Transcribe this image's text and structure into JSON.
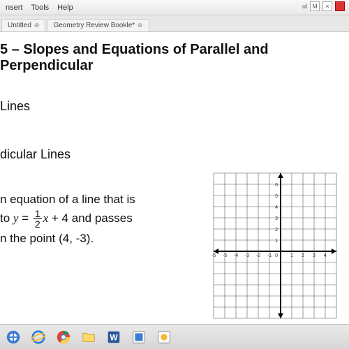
{
  "menu": {
    "items": [
      "nsert",
      "Tools",
      "Help"
    ]
  },
  "tabs": [
    {
      "label": "Untitled",
      "close": "⊛"
    },
    {
      "label": "Geometry Review Bookle*",
      "close": "⊛"
    }
  ],
  "topright": {
    "mini": "ul",
    "m": "M",
    "x": "×"
  },
  "doc": {
    "title": "5 – Slopes and Equations of Parallel and Perpendicular",
    "section1": "Lines",
    "section2": "dicular Lines",
    "body_l1": "n equation of a line that is",
    "body_l2a": "to ",
    "eq_y": "y",
    "eq_eq": " = ",
    "eq_num": "1",
    "eq_den": "2",
    "eq_x": "x",
    "eq_tail": " + 4",
    "body_l2b": "  and passes",
    "body_l3": "n the point (4, -3)."
  },
  "graph": {
    "xmin": -6,
    "xmax": 5,
    "ymin": -6,
    "ymax": 7,
    "cell": 16,
    "grid_color": "#555555",
    "axis_color": "#000000",
    "bg": "#ffffff",
    "xticks": [
      -6,
      -5,
      -4,
      -3,
      -2,
      -1,
      0,
      1,
      2,
      3,
      4
    ],
    "yticks": [
      1,
      2,
      3,
      4,
      5,
      6
    ],
    "label_fontsize": 7,
    "label_color": "#333333"
  },
  "taskbar_icons": [
    "start",
    "ie",
    "chrome",
    "folder",
    "word",
    "smart",
    "misc"
  ]
}
